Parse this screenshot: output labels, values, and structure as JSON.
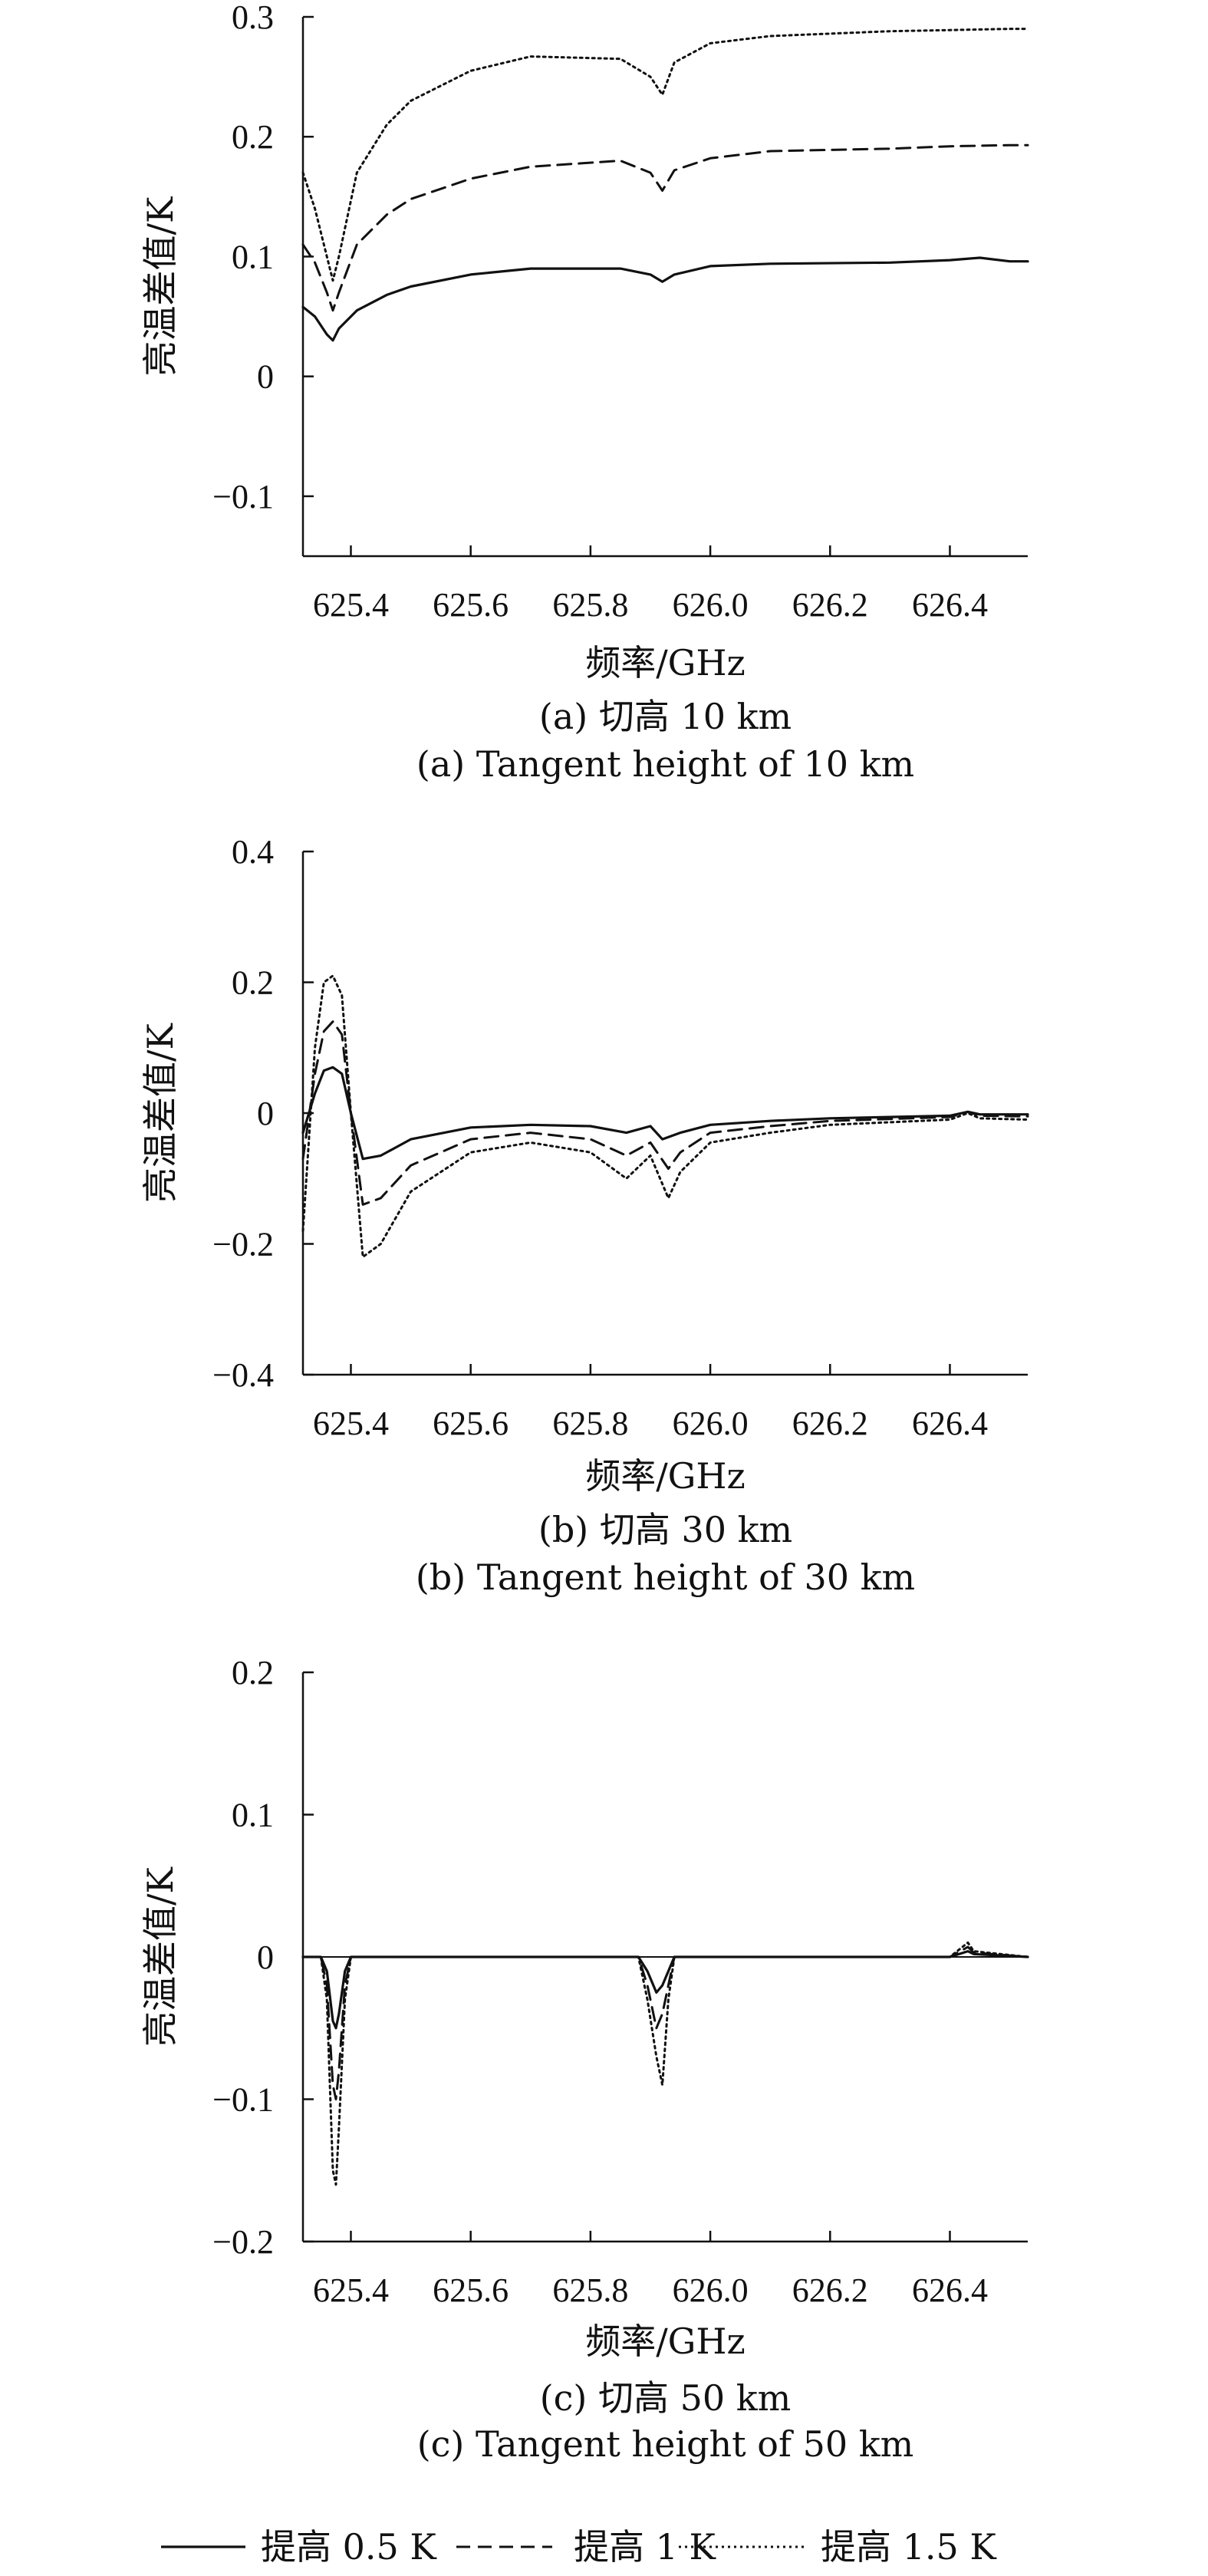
{
  "chart_data": [
    {
      "type": "line",
      "xlabel": "频率/GHz",
      "ylabel": "亮温差值/K",
      "xlim": [
        625.32,
        626.53
      ],
      "ylim": [
        -0.15,
        0.3
      ],
      "xticks": [
        {
          "value": 625.4,
          "label": "625.4"
        },
        {
          "value": 625.6,
          "label": "625.6"
        },
        {
          "value": 625.8,
          "label": "625.8"
        },
        {
          "value": 626.0,
          "label": "626.0"
        },
        {
          "value": 626.2,
          "label": "626.2"
        },
        {
          "value": 626.4,
          "label": "626.4"
        }
      ],
      "yticks": [
        {
          "value": 0.3,
          "label": "0.3"
        },
        {
          "value": 0.2,
          "label": "0.2"
        },
        {
          "value": 0.1,
          "label": "0.1"
        },
        {
          "value": 0,
          "label": "0"
        },
        {
          "value": -0.1,
          "label": "−0.1"
        }
      ],
      "caption_cn": "(a) 切高 10 km",
      "caption_en": "(a) Tangent height of 10 km",
      "series": [
        {
          "style": "solid",
          "x": [
            625.32,
            625.34,
            625.36,
            625.37,
            625.38,
            625.41,
            625.46,
            625.5,
            625.6,
            625.7,
            625.85,
            625.9,
            625.92,
            625.94,
            626.0,
            626.1,
            626.3,
            626.4,
            626.45,
            626.5,
            626.53
          ],
          "y": [
            0.058,
            0.05,
            0.035,
            0.03,
            0.04,
            0.055,
            0.068,
            0.075,
            0.085,
            0.09,
            0.09,
            0.085,
            0.079,
            0.085,
            0.092,
            0.094,
            0.095,
            0.097,
            0.099,
            0.096,
            0.096
          ]
        },
        {
          "style": "dashed",
          "x": [
            625.32,
            625.34,
            625.36,
            625.37,
            625.38,
            625.41,
            625.46,
            625.5,
            625.6,
            625.7,
            625.85,
            625.9,
            625.92,
            625.94,
            626.0,
            626.1,
            626.3,
            626.4,
            626.5,
            626.53
          ],
          "y": [
            0.11,
            0.095,
            0.07,
            0.055,
            0.07,
            0.11,
            0.135,
            0.148,
            0.165,
            0.175,
            0.18,
            0.17,
            0.155,
            0.172,
            0.182,
            0.188,
            0.19,
            0.192,
            0.193,
            0.193
          ]
        },
        {
          "style": "dotted",
          "x": [
            625.32,
            625.34,
            625.36,
            625.37,
            625.38,
            625.41,
            625.46,
            625.5,
            625.6,
            625.7,
            625.85,
            625.9,
            625.92,
            625.94,
            626.0,
            626.1,
            626.3,
            626.4,
            626.5,
            626.53
          ],
          "y": [
            0.17,
            0.14,
            0.1,
            0.08,
            0.1,
            0.17,
            0.21,
            0.23,
            0.255,
            0.267,
            0.265,
            0.25,
            0.235,
            0.262,
            0.278,
            0.284,
            0.288,
            0.289,
            0.29,
            0.29
          ]
        }
      ]
    },
    {
      "type": "line",
      "xlabel": "频率/GHz",
      "ylabel": "亮温差值/K",
      "xlim": [
        625.32,
        626.53
      ],
      "ylim": [
        -0.4,
        0.4
      ],
      "xticks": [
        {
          "value": 625.4,
          "label": "625.4"
        },
        {
          "value": 625.6,
          "label": "625.6"
        },
        {
          "value": 625.8,
          "label": "625.8"
        },
        {
          "value": 626.0,
          "label": "626.0"
        },
        {
          "value": 626.2,
          "label": "626.2"
        },
        {
          "value": 626.4,
          "label": "626.4"
        }
      ],
      "yticks": [
        {
          "value": 0.4,
          "label": "0.4"
        },
        {
          "value": 0.2,
          "label": "0.2"
        },
        {
          "value": 0,
          "label": "0"
        },
        {
          "value": -0.2,
          "label": "−0.2"
        },
        {
          "value": -0.4,
          "label": "−0.4"
        }
      ],
      "caption_cn": "(b) 切高 30 km",
      "caption_en": "(b) Tangent height of 30 km",
      "series": [
        {
          "style": "solid",
          "x": [
            625.32,
            625.34,
            625.355,
            625.37,
            625.385,
            625.4,
            625.42,
            625.45,
            625.5,
            625.6,
            625.7,
            625.8,
            625.86,
            625.9,
            625.92,
            625.95,
            626.0,
            626.1,
            626.2,
            626.4,
            626.43,
            626.45,
            626.53
          ],
          "y": [
            -0.03,
            0.03,
            0.065,
            0.07,
            0.06,
            0.0,
            -0.07,
            -0.065,
            -0.04,
            -0.022,
            -0.018,
            -0.02,
            -0.03,
            -0.02,
            -0.04,
            -0.03,
            -0.018,
            -0.012,
            -0.008,
            -0.004,
            0.002,
            -0.002,
            -0.002
          ]
        },
        {
          "style": "dashed",
          "x": [
            625.32,
            625.34,
            625.355,
            625.37,
            625.385,
            625.4,
            625.42,
            625.45,
            625.5,
            625.6,
            625.7,
            625.8,
            625.86,
            625.9,
            625.93,
            625.95,
            626.0,
            626.1,
            626.2,
            626.4,
            626.43,
            626.45,
            626.53
          ],
          "y": [
            -0.07,
            0.06,
            0.125,
            0.14,
            0.12,
            0.0,
            -0.14,
            -0.13,
            -0.08,
            -0.04,
            -0.03,
            -0.04,
            -0.065,
            -0.045,
            -0.085,
            -0.06,
            -0.03,
            -0.02,
            -0.012,
            -0.006,
            0.002,
            -0.004,
            -0.005
          ]
        },
        {
          "style": "dotted",
          "x": [
            625.32,
            625.34,
            625.355,
            625.37,
            625.385,
            625.4,
            625.42,
            625.45,
            625.5,
            625.6,
            625.7,
            625.8,
            625.86,
            625.9,
            625.93,
            625.95,
            626.0,
            626.1,
            626.2,
            626.4,
            626.43,
            626.45,
            626.53
          ],
          "y": [
            -0.18,
            0.1,
            0.2,
            0.21,
            0.18,
            0.0,
            -0.22,
            -0.2,
            -0.12,
            -0.06,
            -0.045,
            -0.06,
            -0.1,
            -0.065,
            -0.13,
            -0.09,
            -0.045,
            -0.03,
            -0.018,
            -0.01,
            0.0,
            -0.008,
            -0.01
          ]
        }
      ]
    },
    {
      "type": "line",
      "xlabel": "频率/GHz",
      "ylabel": "亮温差值/K",
      "xlim": [
        625.32,
        626.53
      ],
      "ylim": [
        -0.2,
        0.2
      ],
      "xticks": [
        {
          "value": 625.4,
          "label": "625.4"
        },
        {
          "value": 625.6,
          "label": "625.6"
        },
        {
          "value": 625.8,
          "label": "625.8"
        },
        {
          "value": 626.0,
          "label": "626.0"
        },
        {
          "value": 626.2,
          "label": "626.2"
        },
        {
          "value": 626.4,
          "label": "626.4"
        }
      ],
      "yticks": [
        {
          "value": 0.2,
          "label": "0.2"
        },
        {
          "value": 0.1,
          "label": "0.1"
        },
        {
          "value": 0,
          "label": "0"
        },
        {
          "value": -0.1,
          "label": "−0.1"
        },
        {
          "value": -0.2,
          "label": "−0.2"
        }
      ],
      "caption_cn": "(c) 切高 50 km",
      "caption_en": "(c) Tangent height of 50 km",
      "series": [
        {
          "style": "solid",
          "x": [
            625.32,
            625.35,
            625.36,
            625.37,
            625.375,
            625.38,
            625.39,
            625.4,
            625.6,
            625.8,
            625.88,
            625.895,
            625.91,
            625.92,
            625.93,
            625.94,
            626.4,
            626.43,
            626.44,
            626.53
          ],
          "y": [
            0,
            0,
            -0.01,
            -0.045,
            -0.05,
            -0.04,
            -0.01,
            0,
            0,
            0,
            0,
            -0.01,
            -0.025,
            -0.02,
            -0.01,
            0,
            0,
            0.004,
            0.002,
            0
          ]
        },
        {
          "style": "dashed",
          "x": [
            625.32,
            625.35,
            625.36,
            625.37,
            625.375,
            625.38,
            625.39,
            625.4,
            625.6,
            625.8,
            625.88,
            625.895,
            625.91,
            625.92,
            625.93,
            625.94,
            626.4,
            626.43,
            626.44,
            626.53
          ],
          "y": [
            0,
            0,
            -0.02,
            -0.09,
            -0.1,
            -0.08,
            -0.02,
            0,
            0,
            0,
            0,
            -0.02,
            -0.05,
            -0.04,
            -0.02,
            0,
            0,
            0.007,
            0.003,
            0
          ]
        },
        {
          "style": "dotted",
          "x": [
            625.32,
            625.35,
            625.36,
            625.37,
            625.375,
            625.38,
            625.39,
            625.4,
            625.6,
            625.8,
            625.88,
            625.895,
            625.91,
            625.92,
            625.93,
            625.94,
            626.4,
            626.43,
            626.44,
            626.53
          ],
          "y": [
            0,
            0,
            -0.03,
            -0.15,
            -0.16,
            -0.12,
            -0.03,
            0,
            0,
            0,
            0,
            -0.03,
            -0.07,
            -0.09,
            -0.03,
            0,
            0,
            0.01,
            0.004,
            0
          ]
        }
      ]
    }
  ],
  "legend": [
    {
      "style": "solid",
      "label": "提高 0.5 K"
    },
    {
      "style": "dashed",
      "label": "提高 1 K"
    },
    {
      "style": "dotted",
      "label": "提高 1.5 K"
    }
  ]
}
